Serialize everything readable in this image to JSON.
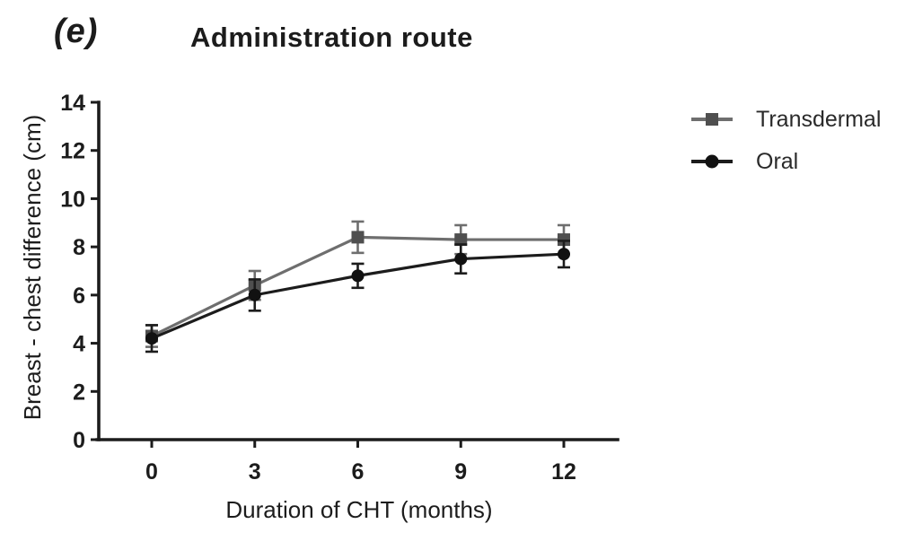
{
  "panel_label": "(e)",
  "chart_data": {
    "type": "line",
    "title": "Administration route",
    "xlabel": "Duration of CHT (months)",
    "ylabel": "Breast - chest difference (cm)",
    "x": [
      0,
      3,
      6,
      9,
      12
    ],
    "xticks": [
      0,
      3,
      6,
      9,
      12
    ],
    "yticks": [
      0,
      2,
      4,
      6,
      8,
      10,
      12,
      14
    ],
    "ylim": [
      0,
      14
    ],
    "grid": false,
    "error_bars": true,
    "legend_position": "top-right",
    "series": [
      {
        "name": "Transdermal",
        "marker": "square",
        "color": "#6e6e6e",
        "marker_color": "#4f4f4f",
        "values": [
          4.3,
          6.4,
          8.4,
          8.3,
          8.3
        ],
        "errors": [
          0.45,
          0.6,
          0.65,
          0.6,
          0.6
        ]
      },
      {
        "name": "Oral",
        "marker": "circle",
        "color": "#1c1c1c",
        "marker_color": "#111111",
        "values": [
          4.2,
          6.0,
          6.8,
          7.5,
          7.7
        ],
        "errors": [
          0.55,
          0.65,
          0.5,
          0.6,
          0.55
        ]
      }
    ]
  }
}
